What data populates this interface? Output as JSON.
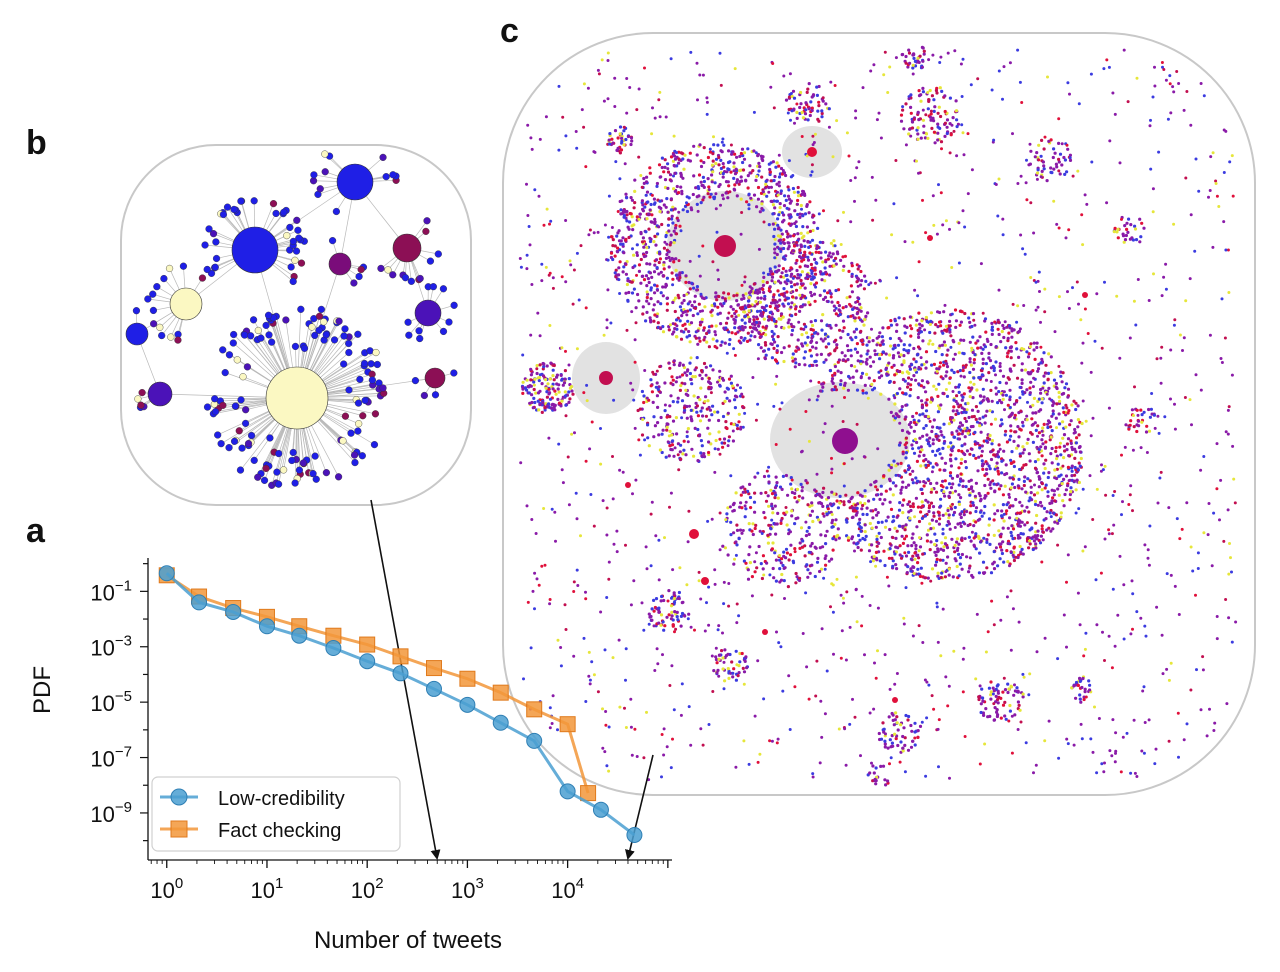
{
  "panels": {
    "a": "a",
    "b": "b",
    "c": "c"
  },
  "chart_data": {
    "type": "line",
    "xscale": "log",
    "yscale": "log",
    "xlabel": "Number of tweets",
    "ylabel": "PDF",
    "xlim": [
      0.65,
      110000
    ],
    "ylim": [
      2e-11,
      1.6
    ],
    "x_ticks": [
      {
        "value": 1,
        "base": "10",
        "exp": "0"
      },
      {
        "value": 10,
        "base": "10",
        "exp": "1"
      },
      {
        "value": 100,
        "base": "10",
        "exp": "2"
      },
      {
        "value": 1000,
        "base": "10",
        "exp": "3"
      },
      {
        "value": 10000,
        "base": "10",
        "exp": "4"
      }
    ],
    "y_ticks": [
      {
        "value": 0.1,
        "base": "10",
        "exp": "−1"
      },
      {
        "value": 0.001,
        "base": "10",
        "exp": "−3"
      },
      {
        "value": 1e-05,
        "base": "10",
        "exp": "−5"
      },
      {
        "value": 1e-07,
        "base": "10",
        "exp": "−7"
      },
      {
        "value": 1e-09,
        "base": "10",
        "exp": "−9"
      }
    ],
    "legend_position": "bottom-left",
    "series": [
      {
        "name": "Low-credibility",
        "color": "#4a9fd1",
        "marker": "circle",
        "x": [
          1,
          2.1,
          4.6,
          10,
          21,
          46,
          100,
          215,
          464,
          1000,
          2150,
          4640,
          10000,
          21500,
          46400
        ],
        "y": [
          0.45,
          0.04,
          0.018,
          0.0055,
          0.0025,
          0.0009,
          0.0003,
          0.00011,
          3e-05,
          8e-06,
          1.8e-06,
          4e-07,
          6e-09,
          1.3e-09,
          1.6e-10
        ]
      },
      {
        "name": "Fact checking",
        "color": "#f2963a",
        "marker": "square",
        "x": [
          1,
          2.1,
          4.6,
          10,
          21,
          46,
          100,
          215,
          464,
          1000,
          2150,
          4640,
          10000,
          16000
        ],
        "y": [
          0.38,
          0.065,
          0.025,
          0.012,
          0.0055,
          0.0025,
          0.0012,
          0.00045,
          0.00017,
          7e-05,
          2.2e-05,
          5.5e-06,
          1.6e-06,
          5.2e-09
        ]
      }
    ]
  },
  "network_b": {
    "colors": {
      "blue": "#1f1fe6",
      "purple": "#4b12b8",
      "maroon": "#8c0f55",
      "cream": "#fbf8c2",
      "magenta": "#7a0c7a"
    }
  },
  "network_c": {
    "colors": {
      "purple": "#8a1aa8",
      "red": "#e0103a",
      "yellow": "#e6e63a",
      "blue": "#3b3be0",
      "hub": "#8f0f8f",
      "crimson": "#c20f50"
    }
  }
}
